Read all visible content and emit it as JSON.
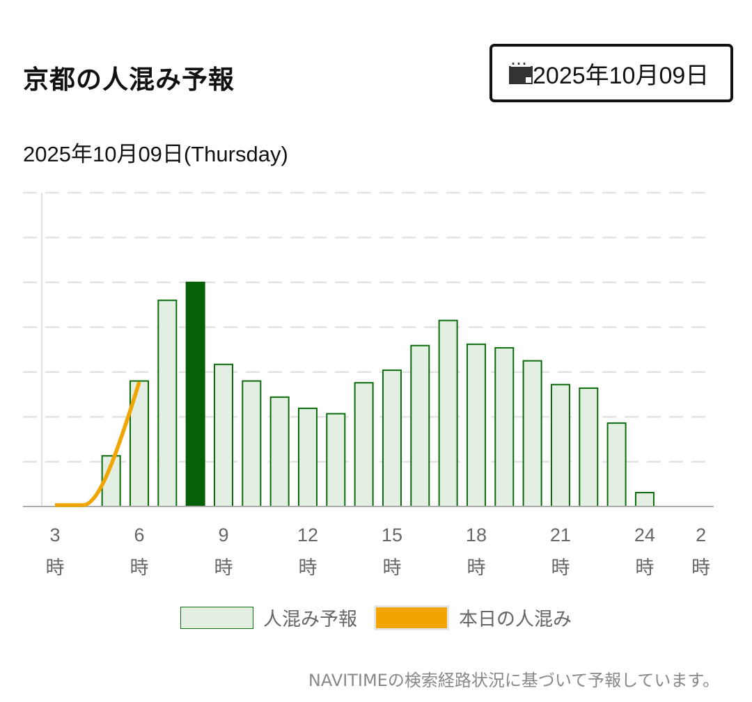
{
  "header": {
    "title": "京都の人混み予報",
    "date_button": "2025年10月09日",
    "calendar_icon": "calendar-icon"
  },
  "subtitle": "2025年10月09日(Thursday)",
  "chart_data": {
    "type": "bar",
    "title": "2025年10月09日(Thursday)",
    "xlabel": "",
    "ylabel": "",
    "hours": [
      3,
      4,
      5,
      6,
      7,
      8,
      9,
      10,
      11,
      12,
      13,
      14,
      15,
      16,
      17,
      18,
      19,
      20,
      21,
      22,
      23,
      24,
      25,
      26
    ],
    "tick_labels": [
      {
        "hour": 3,
        "num": "3",
        "unit": "時"
      },
      {
        "hour": 6,
        "num": "6",
        "unit": "時"
      },
      {
        "hour": 9,
        "num": "9",
        "unit": "時"
      },
      {
        "hour": 12,
        "num": "12",
        "unit": "時"
      },
      {
        "hour": 15,
        "num": "15",
        "unit": "時"
      },
      {
        "hour": 18,
        "num": "18",
        "unit": "時"
      },
      {
        "hour": 21,
        "num": "21",
        "unit": "時"
      },
      {
        "hour": 24,
        "num": "24",
        "unit": "時"
      },
      {
        "hour": 26,
        "num": "2",
        "unit": "時"
      }
    ],
    "ylim": [
      0,
      7
    ],
    "grid": true,
    "highlight_hour": 8,
    "series": [
      {
        "name": "人混み予報",
        "type": "bar",
        "color": "#e3efe3",
        "edge": "#0a6a0a",
        "highlight_color": "#056105",
        "values": [
          0,
          0,
          1.13,
          2.8,
          4.6,
          5.0,
          3.17,
          2.8,
          2.44,
          2.19,
          2.07,
          2.76,
          3.04,
          3.59,
          4.15,
          3.62,
          3.54,
          3.25,
          2.72,
          2.64,
          1.86,
          0.31,
          0,
          0
        ]
      },
      {
        "name": "本日の人混み",
        "type": "line",
        "color": "#f0a500",
        "x": [
          3,
          4,
          5,
          6
        ],
        "values": [
          0,
          0,
          0.9,
          2.75
        ]
      }
    ],
    "legend": "bottom"
  },
  "footer_note": "NAVITIMEの検索経路状況に基づいて予報しています。"
}
